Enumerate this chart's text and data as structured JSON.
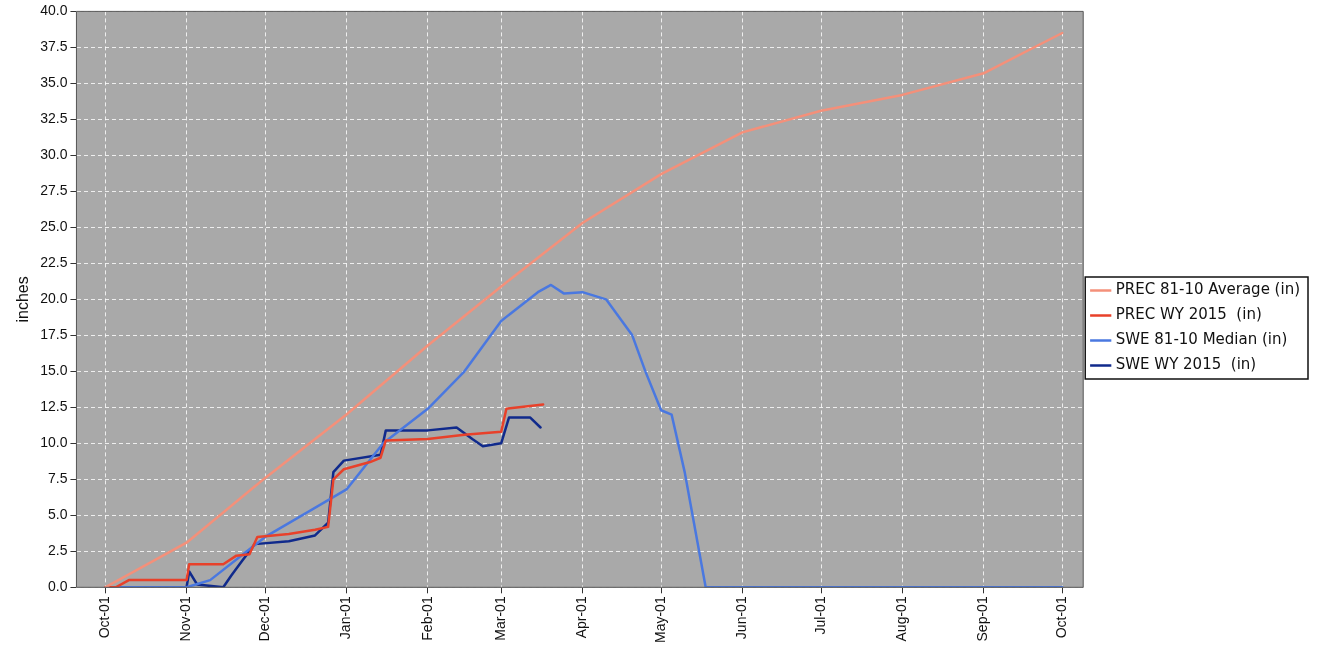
{
  "chart_data": {
    "type": "line",
    "ylabel": "inches",
    "xlim": [
      "2014-09-20",
      "2015-10-09"
    ],
    "ylim": [
      0,
      40
    ],
    "yticks": [
      {
        "value": 0,
        "label": "0.0"
      },
      {
        "value": 2.5,
        "label": "2.5"
      },
      {
        "value": 5,
        "label": "5.0"
      },
      {
        "value": 7.5,
        "label": "7.5"
      },
      {
        "value": 10,
        "label": "10.0"
      },
      {
        "value": 12.5,
        "label": "12.5"
      },
      {
        "value": 15,
        "label": "15.0"
      },
      {
        "value": 17.5,
        "label": "17.5"
      },
      {
        "value": 20,
        "label": "20.0"
      },
      {
        "value": 22.5,
        "label": "22.5"
      },
      {
        "value": 25,
        "label": "25.0"
      },
      {
        "value": 27.5,
        "label": "27.5"
      },
      {
        "value": 30,
        "label": "30.0"
      },
      {
        "value": 32.5,
        "label": "32.5"
      },
      {
        "value": 35,
        "label": "35.0"
      },
      {
        "value": 37.5,
        "label": "37.5"
      },
      {
        "value": 40,
        "label": "40.0"
      }
    ],
    "xticks": [
      {
        "value": "2014-10-01",
        "label": "Oct-01"
      },
      {
        "value": "2014-11-01",
        "label": "Nov-01"
      },
      {
        "value": "2014-12-01",
        "label": "Dec-01"
      },
      {
        "value": "2015-01-01",
        "label": "Jan-01"
      },
      {
        "value": "2015-02-01",
        "label": "Feb-01"
      },
      {
        "value": "2015-03-01",
        "label": "Mar-01"
      },
      {
        "value": "2015-04-01",
        "label": "Apr-01"
      },
      {
        "value": "2015-05-01",
        "label": "May-01"
      },
      {
        "value": "2015-06-01",
        "label": "Jun-01"
      },
      {
        "value": "2015-07-01",
        "label": "Jul-01"
      },
      {
        "value": "2015-08-01",
        "label": "Aug-01"
      },
      {
        "value": "2015-09-01",
        "label": "Sep-01"
      },
      {
        "value": "2015-10-01",
        "label": "Oct-01"
      }
    ],
    "grid": true,
    "legend": "right",
    "marker": "none",
    "line_style": "solid",
    "series": [
      {
        "name": "PREC 81-10 Average (in)",
        "color": "#f4907a",
        "x": [
          "2014-10-01",
          "2014-11-01",
          "2014-12-01",
          "2015-01-01",
          "2015-02-01",
          "2015-03-01",
          "2015-04-01",
          "2015-05-01",
          "2015-06-01",
          "2015-07-01",
          "2015-08-01",
          "2015-09-01",
          "2015-10-01"
        ],
        "values": [
          0,
          3.1,
          7.6,
          12,
          16.8,
          20.9,
          25.3,
          28.7,
          31.6,
          33.1,
          34.2,
          35.7,
          38.5
        ]
      },
      {
        "name": "PREC WY 2015  (in)",
        "color": "#e8412a",
        "x": [
          "2014-10-01",
          "2014-10-05",
          "2014-10-10",
          "2014-11-01",
          "2014-11-02",
          "2014-11-15",
          "2014-11-20",
          "2014-11-25",
          "2014-11-28",
          "2014-12-10",
          "2014-12-20",
          "2014-12-25",
          "2014-12-27",
          "2014-12-31",
          "2015-01-10",
          "2015-01-14",
          "2015-01-16",
          "2015-02-01",
          "2015-02-15",
          "2015-03-01",
          "2015-03-03",
          "2015-03-17"
        ],
        "values": [
          0,
          0,
          0.5,
          0.5,
          1.6,
          1.6,
          2.2,
          2.3,
          3.5,
          3.7,
          4,
          4.2,
          7.5,
          8.2,
          8.7,
          9,
          10.2,
          10.3,
          10.6,
          10.8,
          12.4,
          12.7
        ]
      },
      {
        "name": "SWE 81-10 Median (in)",
        "color": "#4a78e0",
        "x": [
          "2014-10-01",
          "2014-11-01",
          "2014-11-10",
          "2014-12-01",
          "2015-01-01",
          "2015-01-15",
          "2015-02-01",
          "2015-02-15",
          "2015-03-01",
          "2015-03-15",
          "2015-03-20",
          "2015-03-25",
          "2015-04-01",
          "2015-04-10",
          "2015-04-20",
          "2015-04-25",
          "2015-05-01",
          "2015-05-05",
          "2015-05-10",
          "2015-05-18",
          "2015-10-01"
        ],
        "values": [
          0,
          0,
          0.5,
          3.5,
          6.8,
          10,
          12.4,
          15,
          18.5,
          20.5,
          21,
          20.4,
          20.5,
          20,
          17.5,
          15,
          12.3,
          12,
          8,
          0,
          0
        ]
      },
      {
        "name": "SWE WY 2015  (in)",
        "color": "#102a8c",
        "x": [
          "2014-10-01",
          "2014-11-01",
          "2014-11-02",
          "2014-11-05",
          "2014-11-15",
          "2014-11-18",
          "2014-11-22",
          "2014-11-27",
          "2014-12-10",
          "2014-12-20",
          "2014-12-25",
          "2014-12-27",
          "2014-12-31",
          "2015-01-14",
          "2015-01-16",
          "2015-02-01",
          "2015-02-12",
          "2015-02-18",
          "2015-02-22",
          "2015-03-01",
          "2015-03-04",
          "2015-03-12",
          "2015-03-16"
        ],
        "values": [
          0,
          0,
          1.1,
          0.2,
          0,
          0.8,
          1.8,
          3,
          3.2,
          3.6,
          4.5,
          8,
          8.8,
          9.2,
          10.9,
          10.9,
          11.1,
          10.3,
          9.8,
          10,
          11.8,
          11.8,
          11.1
        ]
      }
    ]
  }
}
